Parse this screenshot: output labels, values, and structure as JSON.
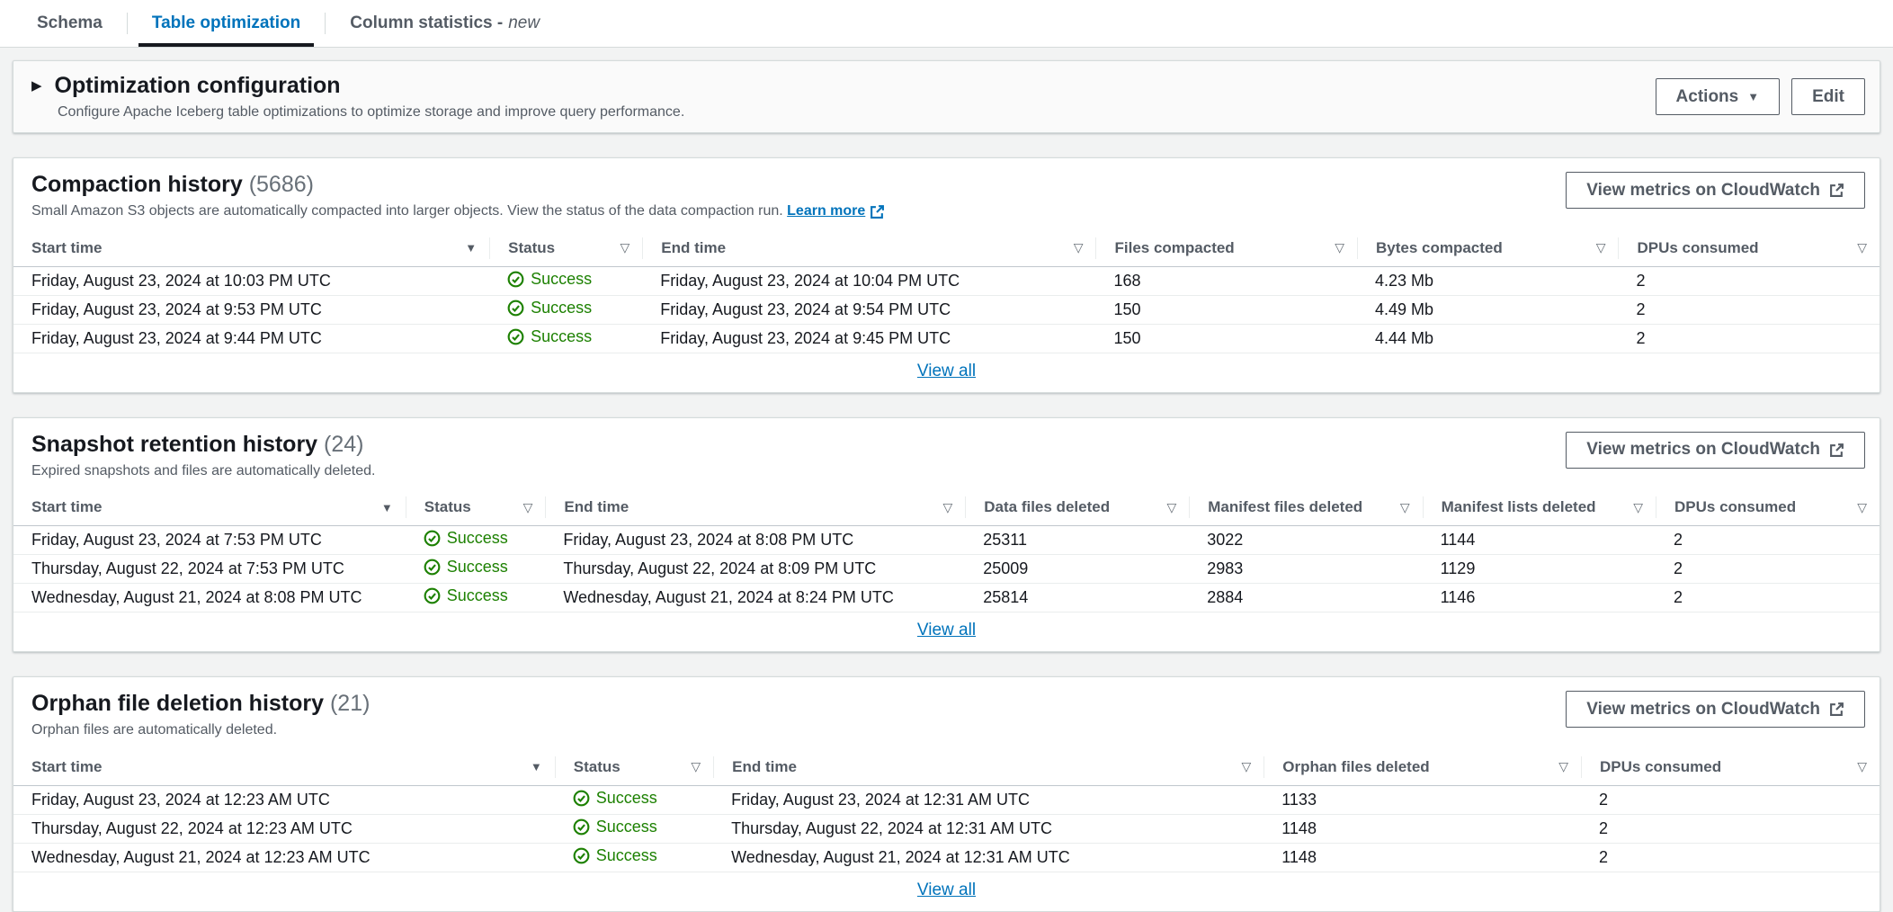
{
  "tabs": [
    {
      "label": "Schema",
      "active": false
    },
    {
      "label": "Table optimization",
      "active": true
    },
    {
      "label": "Column statistics -",
      "suffix": "new",
      "active": false
    }
  ],
  "optimization_config": {
    "title": "Optimization configuration",
    "description": "Configure Apache Iceberg table optimizations to optimize storage and improve query performance.",
    "actions_label": "Actions",
    "edit_label": "Edit"
  },
  "metrics_button_label": "View metrics on CloudWatch",
  "view_all_label": "View all",
  "colors": {
    "accent": "#0073bb",
    "success": "#1d8102",
    "active_tab_underline": "#16191f"
  },
  "sections": [
    {
      "title": "Compaction history",
      "count": "(5686)",
      "description": "Small Amazon S3 objects are automatically compacted into larger objects. View the status of the data compaction run.",
      "learn_more": "Learn more",
      "columns": [
        {
          "label": "Start time",
          "sort": "desc"
        },
        {
          "label": "Status",
          "sort": "filter"
        },
        {
          "label": "End time",
          "sort": "filter"
        },
        {
          "label": "Files compacted",
          "sort": "filter"
        },
        {
          "label": "Bytes compacted",
          "sort": "filter"
        },
        {
          "label": "DPUs consumed",
          "sort": "filter"
        }
      ],
      "rows": [
        [
          "Friday, August 23, 2024 at 10:03 PM UTC",
          "Success",
          "Friday, August 23, 2024 at 10:04 PM UTC",
          "168",
          "4.23 Mb",
          "2"
        ],
        [
          "Friday, August 23, 2024 at 9:53 PM UTC",
          "Success",
          "Friday, August 23, 2024 at 9:54 PM UTC",
          "150",
          "4.49 Mb",
          "2"
        ],
        [
          "Friday, August 23, 2024 at 9:44 PM UTC",
          "Success",
          "Friday, August 23, 2024 at 9:45 PM UTC",
          "150",
          "4.44 Mb",
          "2"
        ]
      ]
    },
    {
      "title": "Snapshot retention history",
      "count": "(24)",
      "description": "Expired snapshots and files are automatically deleted.",
      "learn_more": null,
      "columns": [
        {
          "label": "Start time",
          "sort": "desc"
        },
        {
          "label": "Status",
          "sort": "filter"
        },
        {
          "label": "End time",
          "sort": "filter"
        },
        {
          "label": "Data files deleted",
          "sort": "filter"
        },
        {
          "label": "Manifest files deleted",
          "sort": "filter"
        },
        {
          "label": "Manifest lists deleted",
          "sort": "filter"
        },
        {
          "label": "DPUs consumed",
          "sort": "filter"
        }
      ],
      "rows": [
        [
          "Friday, August 23, 2024 at 7:53 PM UTC",
          "Success",
          "Friday, August 23, 2024 at 8:08 PM UTC",
          "25311",
          "3022",
          "1144",
          "2"
        ],
        [
          "Thursday, August 22, 2024 at 7:53 PM UTC",
          "Success",
          "Thursday, August 22, 2024 at 8:09 PM UTC",
          "25009",
          "2983",
          "1129",
          "2"
        ],
        [
          "Wednesday, August 21, 2024 at 8:08 PM UTC",
          "Success",
          "Wednesday, August 21, 2024 at 8:24 PM UTC",
          "25814",
          "2884",
          "1146",
          "2"
        ]
      ]
    },
    {
      "title": "Orphan file deletion history",
      "count": "(21)",
      "description": "Orphan files are automatically deleted.",
      "learn_more": null,
      "columns": [
        {
          "label": "Start time",
          "sort": "desc"
        },
        {
          "label": "Status",
          "sort": "filter"
        },
        {
          "label": "End time",
          "sort": "filter"
        },
        {
          "label": "Orphan files deleted",
          "sort": "filter"
        },
        {
          "label": "DPUs consumed",
          "sort": "filter"
        }
      ],
      "rows": [
        [
          "Friday, August 23, 2024 at 12:23 AM UTC",
          "Success",
          "Friday, August 23, 2024 at 12:31 AM UTC",
          "1133",
          "2"
        ],
        [
          "Thursday, August 22, 2024 at 12:23 AM UTC",
          "Success",
          "Thursday, August 22, 2024 at 12:31 AM UTC",
          "1148",
          "2"
        ],
        [
          "Wednesday, August 21, 2024 at 12:23 AM UTC",
          "Success",
          "Wednesday, August 21, 2024 at 12:31 AM UTC",
          "1148",
          "2"
        ]
      ]
    }
  ]
}
